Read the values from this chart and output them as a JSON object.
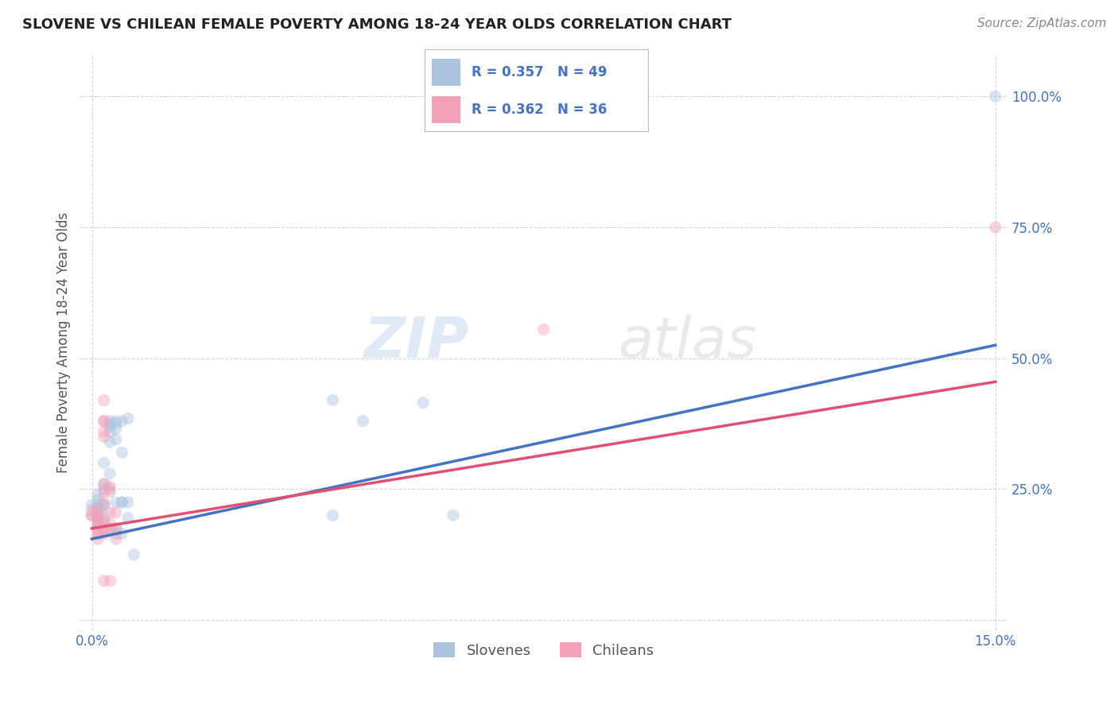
{
  "title": "SLOVENE VS CHILEAN FEMALE POVERTY AMONG 18-24 YEAR OLDS CORRELATION CHART",
  "source": "Source: ZipAtlas.com",
  "ylabel_label": "Female Poverty Among 18-24 Year Olds",
  "legend_entries": [
    {
      "label": "Slovenes",
      "R": "0.357",
      "N": "49"
    },
    {
      "label": "Chileans",
      "R": "0.362",
      "N": "36"
    }
  ],
  "watermark_zip": "ZIP",
  "watermark_atlas": "atlas",
  "slovene_scatter": [
    [
      0.0,
      0.22
    ],
    [
      0.0,
      0.2
    ],
    [
      0.001,
      0.215
    ],
    [
      0.001,
      0.195
    ],
    [
      0.001,
      0.185
    ],
    [
      0.001,
      0.23
    ],
    [
      0.001,
      0.22
    ],
    [
      0.001,
      0.2
    ],
    [
      0.001,
      0.195
    ],
    [
      0.001,
      0.21
    ],
    [
      0.001,
      0.24
    ],
    [
      0.001,
      0.18
    ],
    [
      0.002,
      0.2
    ],
    [
      0.002,
      0.22
    ],
    [
      0.002,
      0.19
    ],
    [
      0.002,
      0.26
    ],
    [
      0.002,
      0.3
    ],
    [
      0.002,
      0.25
    ],
    [
      0.002,
      0.22
    ],
    [
      0.003,
      0.38
    ],
    [
      0.003,
      0.36
    ],
    [
      0.003,
      0.34
    ],
    [
      0.003,
      0.25
    ],
    [
      0.003,
      0.37
    ],
    [
      0.003,
      0.375
    ],
    [
      0.003,
      0.28
    ],
    [
      0.003,
      0.17
    ],
    [
      0.004,
      0.365
    ],
    [
      0.004,
      0.375
    ],
    [
      0.004,
      0.345
    ],
    [
      0.004,
      0.175
    ],
    [
      0.004,
      0.38
    ],
    [
      0.004,
      0.225
    ],
    [
      0.004,
      0.165
    ],
    [
      0.005,
      0.32
    ],
    [
      0.005,
      0.225
    ],
    [
      0.005,
      0.165
    ],
    [
      0.005,
      0.38
    ],
    [
      0.005,
      0.225
    ],
    [
      0.006,
      0.385
    ],
    [
      0.006,
      0.225
    ],
    [
      0.006,
      0.195
    ],
    [
      0.007,
      0.125
    ],
    [
      0.04,
      0.42
    ],
    [
      0.04,
      0.2
    ],
    [
      0.045,
      0.38
    ],
    [
      0.055,
      0.415
    ],
    [
      0.06,
      0.2
    ],
    [
      0.15,
      1.0
    ]
  ],
  "chilean_scatter": [
    [
      0.0,
      0.21
    ],
    [
      0.0,
      0.2
    ],
    [
      0.001,
      0.2
    ],
    [
      0.001,
      0.195
    ],
    [
      0.001,
      0.185
    ],
    [
      0.001,
      0.175
    ],
    [
      0.001,
      0.165
    ],
    [
      0.001,
      0.21
    ],
    [
      0.001,
      0.195
    ],
    [
      0.001,
      0.185
    ],
    [
      0.001,
      0.165
    ],
    [
      0.001,
      0.155
    ],
    [
      0.002,
      0.42
    ],
    [
      0.002,
      0.38
    ],
    [
      0.002,
      0.36
    ],
    [
      0.002,
      0.35
    ],
    [
      0.002,
      0.185
    ],
    [
      0.002,
      0.175
    ],
    [
      0.002,
      0.165
    ],
    [
      0.002,
      0.075
    ],
    [
      0.002,
      0.38
    ],
    [
      0.002,
      0.26
    ],
    [
      0.002,
      0.245
    ],
    [
      0.002,
      0.225
    ],
    [
      0.002,
      0.175
    ],
    [
      0.003,
      0.245
    ],
    [
      0.003,
      0.205
    ],
    [
      0.003,
      0.185
    ],
    [
      0.003,
      0.255
    ],
    [
      0.003,
      0.175
    ],
    [
      0.004,
      0.205
    ],
    [
      0.004,
      0.175
    ],
    [
      0.004,
      0.155
    ],
    [
      0.003,
      0.075
    ],
    [
      0.075,
      0.555
    ],
    [
      0.15,
      0.75
    ]
  ],
  "slovene_line_x": [
    0.0,
    0.15
  ],
  "slovene_line_y": [
    0.155,
    0.525
  ],
  "chilean_line_x": [
    0.0,
    0.15
  ],
  "chilean_line_y": [
    0.175,
    0.455
  ],
  "slovene_color": "#4472c4",
  "chilean_color": "#e05070",
  "slovene_scatter_color": "#aac4e0",
  "chilean_scatter_color": "#f4a0b8",
  "xlim": [
    -0.002,
    0.152
  ],
  "ylim": [
    -0.02,
    1.08
  ],
  "yticks": [
    0.0,
    0.25,
    0.5,
    0.75,
    1.0
  ],
  "xticks": [
    0.0,
    0.15
  ],
  "background_color": "#ffffff",
  "grid_color": "#cccccc",
  "title_color": "#222222",
  "axis_tick_color": "#4472c4",
  "marker_size": 120,
  "marker_alpha": 0.45,
  "title_fontsize": 13,
  "source_fontsize": 11,
  "tick_fontsize": 12,
  "ylabel_fontsize": 12
}
